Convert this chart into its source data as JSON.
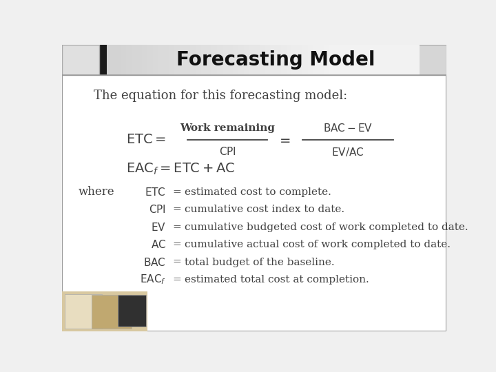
{
  "title": "Forecasting Model",
  "title_fontsize": 20,
  "bg_color": "#f0f0f0",
  "slide_bg": "#ffffff",
  "intro_text": "The equation for this forecasting model:",
  "where_label": "where",
  "definitions": [
    [
      "ETC",
      "estimated cost to complete."
    ],
    [
      "CPI",
      "cumulative cost index to date."
    ],
    [
      "EV",
      "cumulative budgeted cost of work completed to date."
    ],
    [
      "AC",
      "cumulative actual cost of work completed to date."
    ],
    [
      "BAC",
      "total budget of the baseline."
    ],
    [
      "EACf",
      "estimated total cost at completion."
    ]
  ],
  "text_color": "#404040",
  "header_grad_left": "#c8c8c8",
  "header_grad_right": "#e8e8e8",
  "dark_bar_color": "#1a1a1a",
  "font_size_intro": 13,
  "font_size_eq": 14,
  "font_size_def": 11,
  "font_size_where": 12
}
